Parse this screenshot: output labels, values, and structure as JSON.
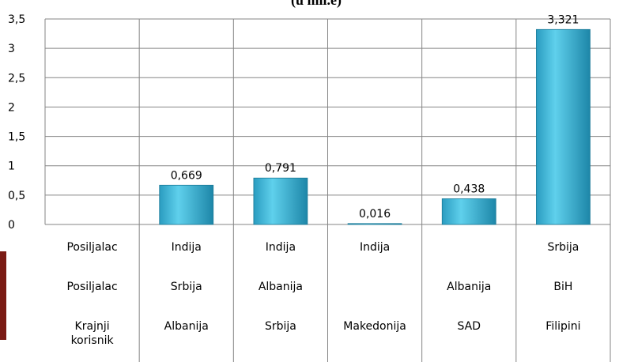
{
  "chart_data": {
    "type": "bar",
    "title": "(u mil.e)",
    "categories": [
      [
        "Posiljalac",
        "Posiljalac",
        "Krajnji korisnik"
      ],
      [
        "Indija",
        "Srbija",
        "Albanija"
      ],
      [
        "Indija",
        "Albanija",
        "Srbija"
      ],
      [
        "Indija",
        null,
        "Makedonija"
      ],
      [
        null,
        "Albanija",
        "SAD"
      ],
      [
        "Srbija",
        "BiH",
        "Filipini"
      ]
    ],
    "values": [
      null,
      0.669,
      0.791,
      0.016,
      0.438,
      3.321
    ],
    "value_labels": [
      null,
      "0,669",
      "0,791",
      "0,016",
      "0,438",
      "3,321"
    ],
    "color": "#3bb6d8",
    "ylim": [
      0,
      3.5
    ],
    "yticks": [
      0,
      {
        "value": 0.5,
        "label": "0,5"
      },
      1,
      {
        "value": 1.5,
        "label": "1,5"
      },
      2,
      {
        "value": 2.5,
        "label": "2,5"
      },
      3,
      {
        "value": 3.5,
        "label": "3,5"
      }
    ],
    "grid": true
  }
}
